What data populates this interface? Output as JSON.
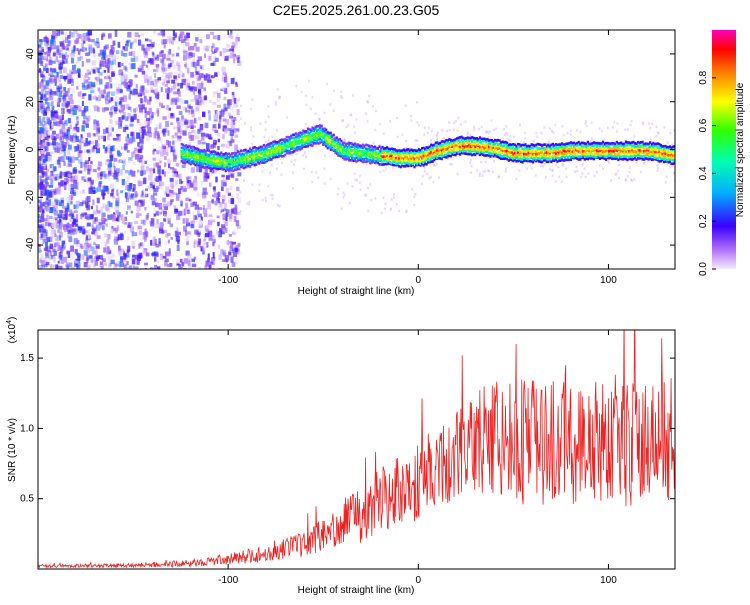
{
  "title": "C2E5.2025.261.00.23.G05",
  "colors": {
    "snr_line": "#ee2222"
  },
  "chart_data": [
    {
      "type": "heatmap",
      "xlabel": "Height of straight line (km)",
      "ylabel": "Frequency (Hz)",
      "xlim": [
        -200,
        135
      ],
      "ylim": [
        -50,
        50
      ],
      "xticks": [
        -100,
        0,
        100
      ],
      "xtick_labels": [
        "-100",
        "0",
        "100"
      ],
      "yticks": [
        -40,
        -20,
        0,
        20,
        40
      ],
      "ytick_labels": [
        "-40",
        "-20",
        "0",
        "20",
        "40"
      ],
      "ridge": {
        "x": [
          -125,
          -115,
          -100,
          -90,
          -80,
          -70,
          -60,
          -52,
          -45,
          -40,
          -30,
          -20,
          -10,
          0,
          10,
          20,
          30,
          40,
          50,
          60,
          70,
          80,
          90,
          100,
          110,
          120,
          135
        ],
        "freq": [
          -1,
          -3,
          -5,
          -3,
          -1,
          2,
          5,
          7,
          3,
          0,
          -1,
          -2,
          -3,
          -3,
          0,
          2,
          2,
          1,
          -1,
          -1,
          -1,
          0,
          0,
          0,
          0,
          0,
          -2
        ]
      },
      "colorbar": {
        "label": "Normalized spectral amplitude",
        "range": [
          0,
          1
        ],
        "ticks": [
          0.0,
          0.2,
          0.4,
          0.6,
          0.8
        ],
        "tick_labels": [
          "0.0",
          "0.2",
          "0.4",
          "0.6",
          "0.8"
        ]
      }
    },
    {
      "type": "line",
      "xlabel": "Height of straight line (km)",
      "ylabel": "SNR (10 * v/v)",
      "y_multiplier": "(x10",
      "y_multiplier_exp": "4",
      "y_multiplier_close": ")",
      "xlim": [
        -200,
        135
      ],
      "ylim": [
        0,
        17000
      ],
      "xticks": [
        -100,
        0,
        100
      ],
      "xtick_labels": [
        "-100",
        "0",
        "100"
      ],
      "yticks": [
        5000,
        10000,
        15000
      ],
      "ytick_labels": [
        "0.5",
        "1.0",
        "1.5"
      ],
      "envelope": {
        "x": [
          -200,
          -150,
          -120,
          -100,
          -80,
          -60,
          -45,
          -35,
          -30,
          -20,
          -10,
          0,
          10,
          20,
          30,
          40,
          50,
          60,
          80,
          100,
          120,
          135
        ],
        "mean": [
          200,
          250,
          400,
          700,
          1100,
          1800,
          2800,
          4000,
          3800,
          5000,
          5600,
          6200,
          7400,
          8000,
          9000,
          9500,
          9200,
          9000,
          9000,
          9000,
          9000,
          9200
        ],
        "spread": [
          100,
          150,
          250,
          400,
          600,
          900,
          1300,
          1800,
          2000,
          2300,
          2600,
          2800,
          3000,
          3200,
          3600,
          4200,
          4500,
          4500,
          4500,
          4600,
          4500,
          4400
        ]
      }
    }
  ]
}
